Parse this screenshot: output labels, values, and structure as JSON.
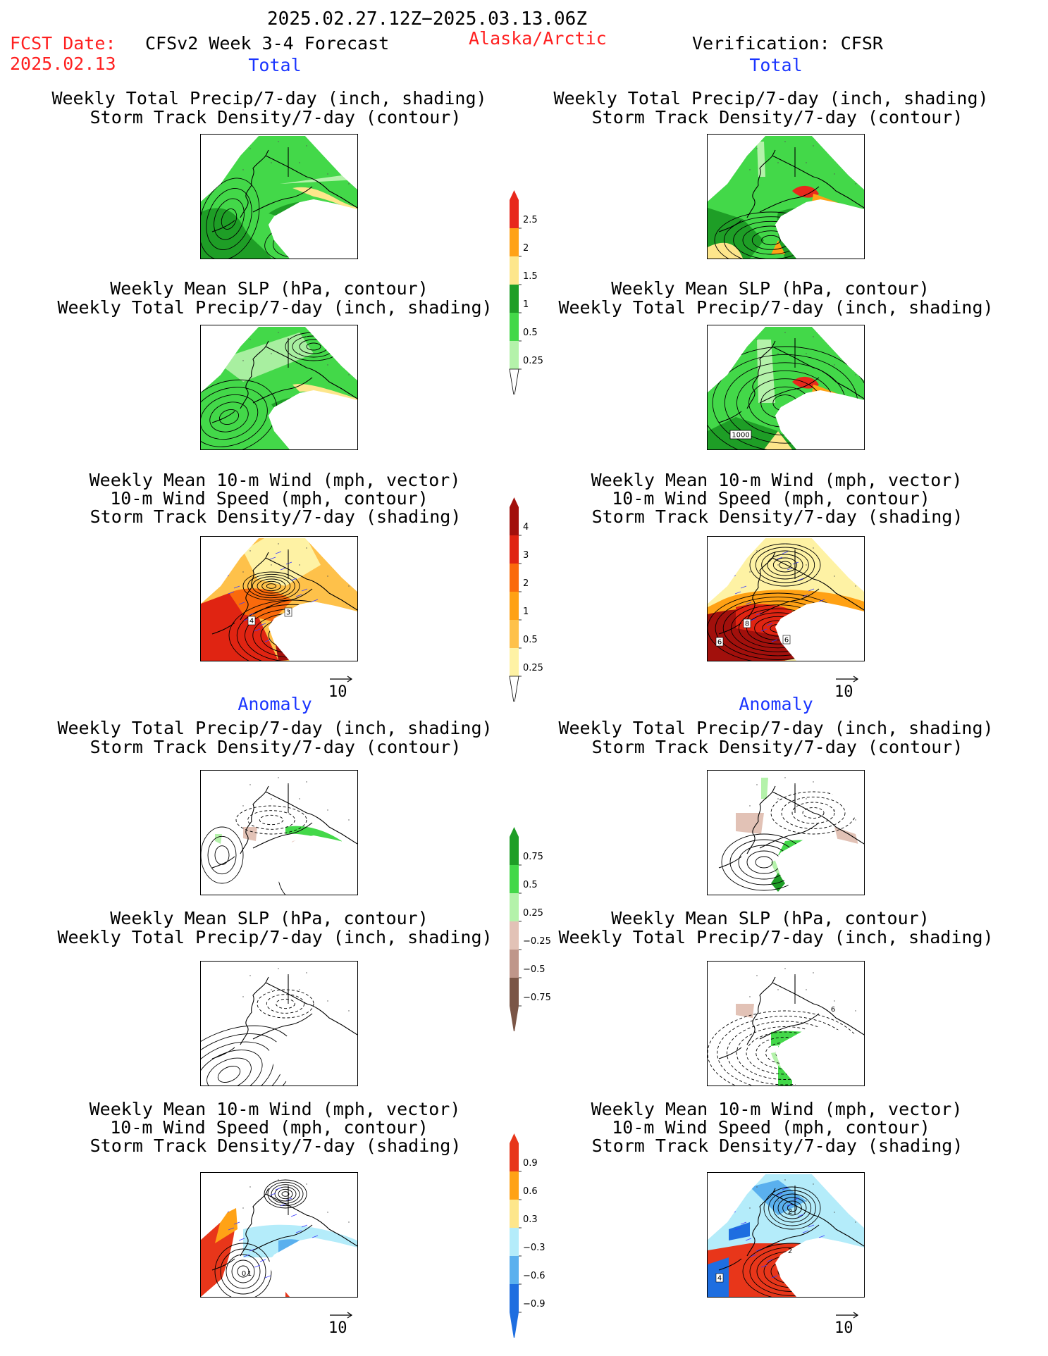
{
  "header": {
    "date_range": "2025.02.27.12Z−2025.03.13.06Z",
    "fcst_label": "FCST Date:",
    "fcst_date": "2025.02.13",
    "model": "CFSv2 Week 3-4 Forecast",
    "region": "Alaska/Arctic",
    "verification": "Verification: CFSR"
  },
  "sections": {
    "total": "Total",
    "anomaly": "Anomaly"
  },
  "titles": {
    "precip_storm": [
      "Weekly Total Precip/7-day (inch, shading)",
      "Storm Track Density/7-day (contour)"
    ],
    "slp_precip": [
      "Weekly Mean SLP (hPa, contour)",
      "Weekly Total Precip/7-day (inch, shading)"
    ],
    "wind": [
      "Weekly Mean 10-m Wind (mph, vector)",
      "10-m Wind Speed (mph, contour)",
      "Storm Track Density/7-day (shading)"
    ]
  },
  "colorbars": {
    "precip_total": {
      "labels": [
        "2.5",
        "2",
        "1.5",
        "1",
        "0.5",
        "0.25"
      ],
      "colors": [
        "#e8281c",
        "#ffa216",
        "#fde68b",
        "#1e9e26",
        "#43d849",
        "#b4f2aa"
      ]
    },
    "storm_total": {
      "labels": [
        "4",
        "3",
        "2",
        "1",
        "0.5",
        "0.25"
      ],
      "colors": [
        "#a2100c",
        "#e02412",
        "#fa6a0c",
        "#ffa114",
        "#fec14a",
        "#fef2a4"
      ]
    },
    "precip_anom": {
      "labels": [
        "0.75",
        "0.5",
        "0.25",
        "−0.25",
        "−0.5",
        "−0.75"
      ],
      "colors": [
        "#1e9e26",
        "#43d849",
        "#b4f2aa",
        "#e2c2b6",
        "#bf968a",
        "#7a5546"
      ]
    },
    "storm_anom": {
      "labels": [
        "0.9",
        "0.6",
        "0.3",
        "−0.3",
        "−0.6",
        "−0.9"
      ],
      "colors": [
        "#e8361a",
        "#ffa216",
        "#fde68b",
        "#b4ecfa",
        "#5ab0ee",
        "#1e6ee0"
      ]
    }
  },
  "panel_labels": {
    "r3_left": [
      "4",
      "3"
    ],
    "r3_right": [
      "8",
      "6",
      "6"
    ],
    "r2_right": [
      "1000"
    ],
    "r5_right": [
      "6"
    ],
    "r6_left": [
      "0",
      "1"
    ],
    "r6_right": [
      "4",
      "2",
      "2"
    ]
  },
  "vector_ref": "10"
}
